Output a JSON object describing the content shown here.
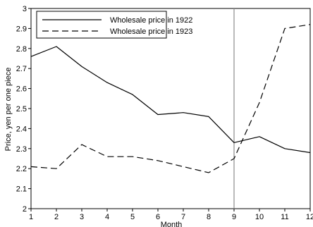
{
  "chart_data": {
    "type": "line",
    "xlabel": "Month",
    "ylabel": "Price, yen per one piece",
    "x": [
      1,
      2,
      3,
      4,
      5,
      6,
      7,
      8,
      9,
      10,
      11,
      12
    ],
    "xlim": [
      1,
      12
    ],
    "ylim": [
      2,
      3
    ],
    "xticks": [
      "1",
      "2",
      "3",
      "4",
      "5",
      "6",
      "7",
      "8",
      "9",
      "10",
      "11",
      "12"
    ],
    "yticks": [
      "2",
      "2.1",
      "2.2",
      "2.3",
      "2.4",
      "2.5",
      "2.6",
      "2.7",
      "2.8",
      "2.9",
      "3"
    ],
    "grid": false,
    "legend_position": "top-left",
    "reference_line_x": 9,
    "series": [
      {
        "name": "Wholesale price in 1922",
        "style": "solid",
        "color": "#000000",
        "values": [
          2.76,
          2.81,
          2.71,
          2.63,
          2.57,
          2.47,
          2.48,
          2.46,
          2.33,
          2.36,
          2.3,
          2.28
        ]
      },
      {
        "name": "Wholesale price in 1923",
        "style": "dashed",
        "color": "#000000",
        "values": [
          2.21,
          2.2,
          2.32,
          2.26,
          2.26,
          2.24,
          2.21,
          2.18,
          2.25,
          2.53,
          2.9,
          2.92
        ]
      }
    ]
  }
}
